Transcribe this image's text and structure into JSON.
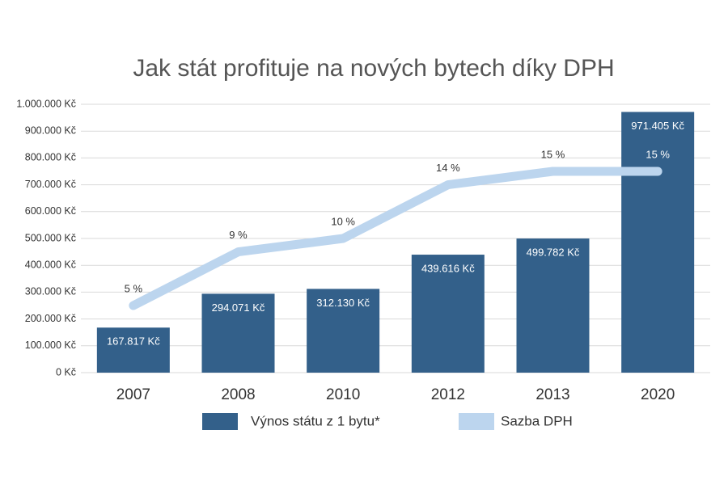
{
  "chart_data": {
    "type": "bar-line",
    "title": "Jak stát profituje na nových bytech díky DPH",
    "categories": [
      "2007",
      "2008",
      "2010",
      "2012",
      "2013",
      "2020"
    ],
    "series": [
      {
        "name": "Výnos státu z 1 bytu*",
        "type": "bar",
        "color": "#33608a",
        "values": [
          167817,
          294071,
          312130,
          439616,
          499782,
          971405
        ],
        "value_labels": [
          "167.817 Kč",
          "294.071 Kč",
          "312.130 Kč",
          "439.616 Kč",
          "499.782 Kč",
          "971.405 Kč"
        ]
      },
      {
        "name": "Sazba DPH",
        "type": "line",
        "axis": "y2",
        "color": "#bcd5ee",
        "values": [
          5,
          9,
          10,
          14,
          15,
          15
        ],
        "value_labels": [
          "5 %",
          "9 %",
          "10 %",
          "14 %",
          "15 %",
          "15 %"
        ]
      }
    ],
    "ylim": [
      0,
      1000000
    ],
    "yticks": [
      {
        "value": 0,
        "label": "0 Kč"
      },
      {
        "value": 100000,
        "label": "100.000 Kč"
      },
      {
        "value": 200000,
        "label": "200.000 Kč"
      },
      {
        "value": 300000,
        "label": "300.000 Kč"
      },
      {
        "value": 400000,
        "label": "400.000 Kč"
      },
      {
        "value": 500000,
        "label": "500.000 Kč"
      },
      {
        "value": 600000,
        "label": "600.000 Kč"
      },
      {
        "value": 700000,
        "label": "700.000 Kč"
      },
      {
        "value": 800000,
        "label": "800.000 Kč"
      },
      {
        "value": 900000,
        "label": "900.000 Kč"
      },
      {
        "value": 1000000,
        "label": "1.000.000 Kč"
      }
    ],
    "y2lim": [
      0,
      20
    ],
    "grid": true
  }
}
